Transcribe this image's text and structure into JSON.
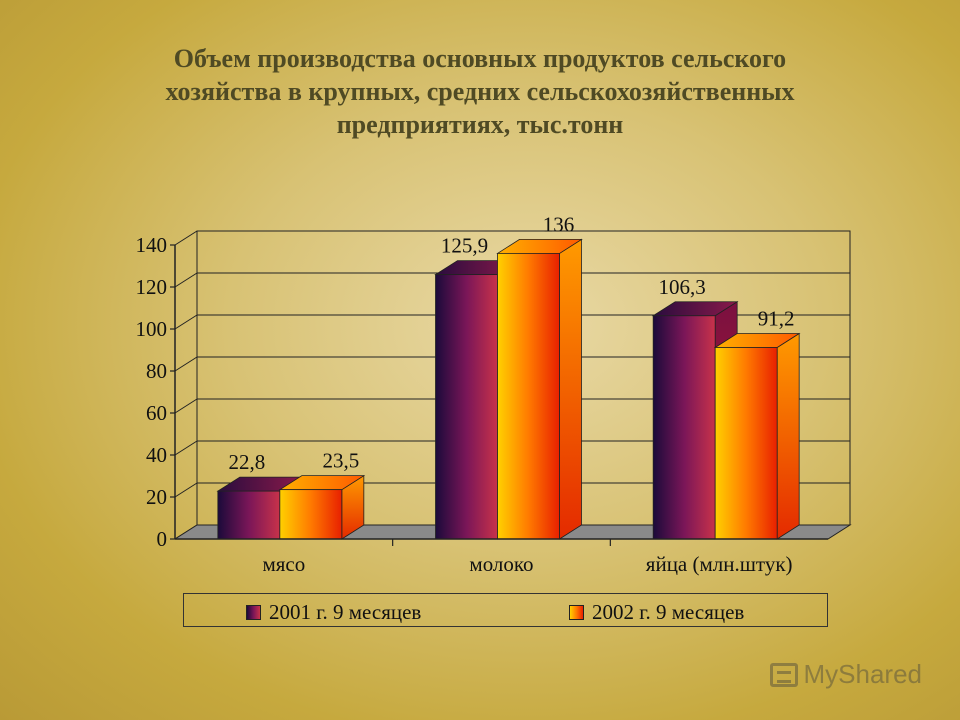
{
  "chart_data": {
    "type": "bar",
    "title_lines": [
      "Объем производства основных продуктов сельского",
      "хозяйства в крупных, средних сельскохозяйственных",
      "предприятиях, тыс.тонн"
    ],
    "categories": [
      "мясо",
      "молоко",
      "яйца (млн.штук)"
    ],
    "series": [
      {
        "name": "2001 г. 9 месяцев",
        "values": [
          22.8,
          125.9,
          106.3
        ],
        "labels": [
          "22,8",
          "125,9",
          "106,3"
        ]
      },
      {
        "name": "2002 г. 9 месяцев",
        "values": [
          23.5,
          136,
          91.2
        ],
        "labels": [
          "23,5",
          "136",
          "91,2"
        ]
      }
    ],
    "yticks": [
      0,
      20,
      40,
      60,
      80,
      100,
      120,
      140
    ],
    "ylim": [
      0,
      140
    ],
    "grid": true,
    "legend_position": "bottom",
    "colors": {
      "series_2001": [
        "#1b0a3a",
        "#7a1658",
        "#c8324a"
      ],
      "series_2002": [
        "#ffd000",
        "#ff7a00",
        "#e82000"
      ]
    },
    "style": "3d-clustered"
  },
  "watermark": {
    "text": "MyShared",
    "icon": "presentation-board-icon"
  }
}
